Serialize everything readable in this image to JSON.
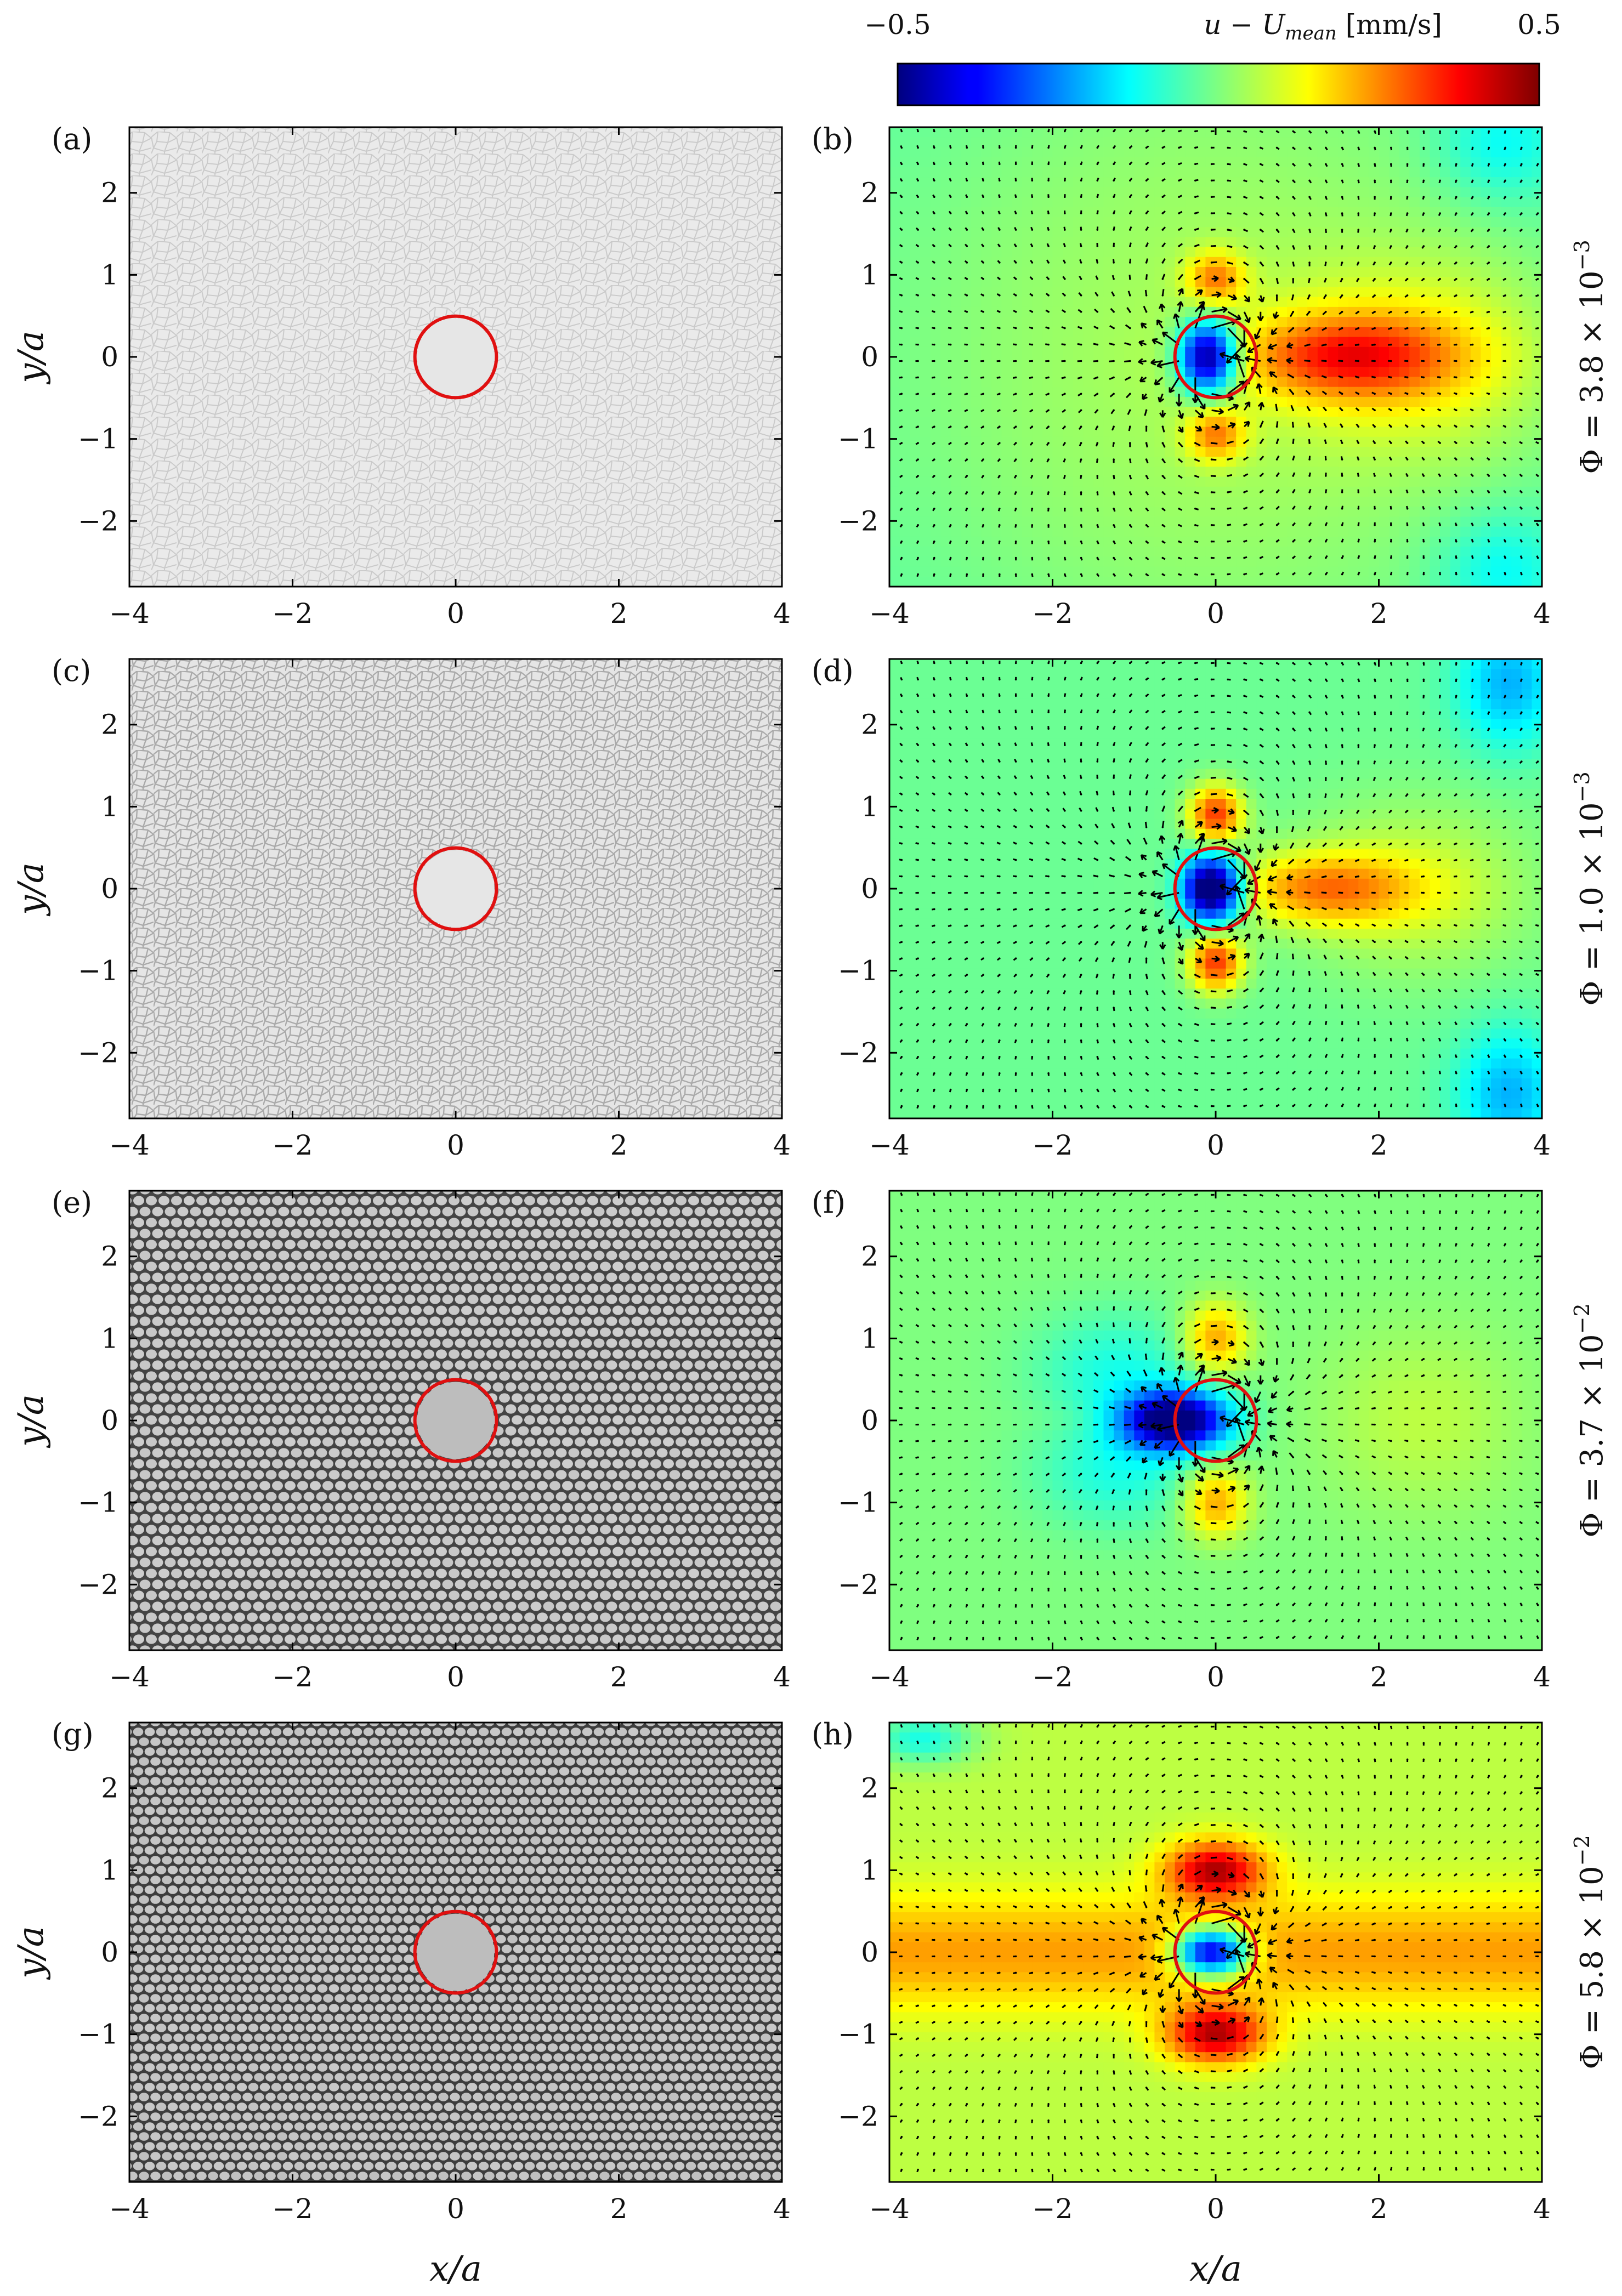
{
  "figure": {
    "colorbar": {
      "min_label": "−0.5",
      "max_label": "0.5",
      "title": "u − U",
      "title_sub": "mean",
      "title_unit": " [mm/s]",
      "min": -0.5,
      "max": 0.5,
      "colormap": "jet"
    },
    "axes": {
      "xlabel": "x/a",
      "ylabel": "y/a",
      "x_ticks": [
        "−4",
        "−2",
        "0",
        "2",
        "4"
      ],
      "y_ticks": [
        "2",
        "1",
        "0",
        "−1",
        "−2"
      ],
      "xlim": [
        -4,
        4
      ],
      "ylim": [
        -2.8,
        2.8
      ]
    },
    "marker": {
      "shape": "circle",
      "radius": 0.5,
      "center": [
        0,
        0
      ],
      "color": "#e01010"
    },
    "rows": [
      {
        "left": {
          "label": "(a)",
          "kind": "foam-image",
          "style": "faint polygonal bubbles"
        },
        "right": {
          "label": "(b)",
          "kind": "velocity-field"
        },
        "phi": {
          "prefix": "Φ = 3.8 × 10",
          "exp": "−3"
        }
      },
      {
        "left": {
          "label": "(c)",
          "kind": "foam-image",
          "style": "polygonal bubbles"
        },
        "right": {
          "label": "(d)",
          "kind": "velocity-field"
        },
        "phi": {
          "prefix": "Φ = 1.0 × 10",
          "exp": "−3"
        }
      },
      {
        "left": {
          "label": "(e)",
          "kind": "foam-image",
          "style": "round bubbles"
        },
        "right": {
          "label": "(f)",
          "kind": "velocity-field"
        },
        "phi": {
          "prefix": "Φ = 3.7 × 10",
          "exp": "−2"
        }
      },
      {
        "left": {
          "label": "(g)",
          "kind": "foam-image",
          "style": "round bubbles"
        },
        "right": {
          "label": "(h)",
          "kind": "velocity-field"
        },
        "phi": {
          "prefix": "Φ = 5.8 × 10",
          "exp": "−2"
        }
      }
    ]
  }
}
